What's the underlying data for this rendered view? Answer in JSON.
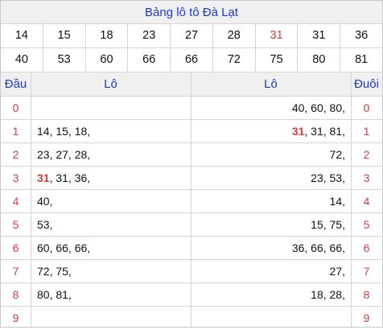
{
  "title": "Bảng lô tô Đà Lạt",
  "numbers_row1": [
    "14",
    "15",
    "18",
    "23",
    "27",
    "28",
    "31",
    "31",
    "36"
  ],
  "numbers_row2": [
    "40",
    "53",
    "60",
    "66",
    "66",
    "72",
    "75",
    "80",
    "81"
  ],
  "highlight_index_row1": 6,
  "headers": {
    "dau": "Đầu",
    "lo_left": "Lô",
    "lo_right": "Lô",
    "duoi": "Đuôi"
  },
  "rows": [
    {
      "dau": "0",
      "lo_left": "",
      "lo_left_hot": "",
      "lo_right": "40, 60, 80,",
      "lo_right_hot": "",
      "duoi": "0"
    },
    {
      "dau": "1",
      "lo_left": "14, 15, 18,",
      "lo_left_hot": "",
      "lo_right": ", 31, 81,",
      "lo_right_hot": "31",
      "duoi": "1"
    },
    {
      "dau": "2",
      "lo_left": "23, 27, 28,",
      "lo_left_hot": "",
      "lo_right": "72,",
      "lo_right_hot": "",
      "duoi": "2"
    },
    {
      "dau": "3",
      "lo_left": ", 31, 36,",
      "lo_left_hot": "31",
      "lo_right": "23, 53,",
      "lo_right_hot": "",
      "duoi": "3"
    },
    {
      "dau": "4",
      "lo_left": "40,",
      "lo_left_hot": "",
      "lo_right": "14,",
      "lo_right_hot": "",
      "duoi": "4"
    },
    {
      "dau": "5",
      "lo_left": "53,",
      "lo_left_hot": "",
      "lo_right": "15, 75,",
      "lo_right_hot": "",
      "duoi": "5"
    },
    {
      "dau": "6",
      "lo_left": "60, 66, 66,",
      "lo_left_hot": "",
      "lo_right": "36, 66, 66,",
      "lo_right_hot": "",
      "duoi": "6"
    },
    {
      "dau": "7",
      "lo_left": "72, 75,",
      "lo_left_hot": "",
      "lo_right": "27,",
      "lo_right_hot": "",
      "duoi": "7"
    },
    {
      "dau": "8",
      "lo_left": "80, 81,",
      "lo_left_hot": "",
      "lo_right": "18, 28,",
      "lo_right_hot": "",
      "duoi": "8"
    },
    {
      "dau": "9",
      "lo_left": "",
      "lo_left_hot": "",
      "lo_right": "",
      "lo_right_hot": "",
      "duoi": "9"
    }
  ],
  "colors": {
    "heading_blue": "#1a3ccc",
    "accent_red": "#d93a3a",
    "header_bg": "#f0f0f0",
    "grid_line": "#d4d4d4"
  }
}
